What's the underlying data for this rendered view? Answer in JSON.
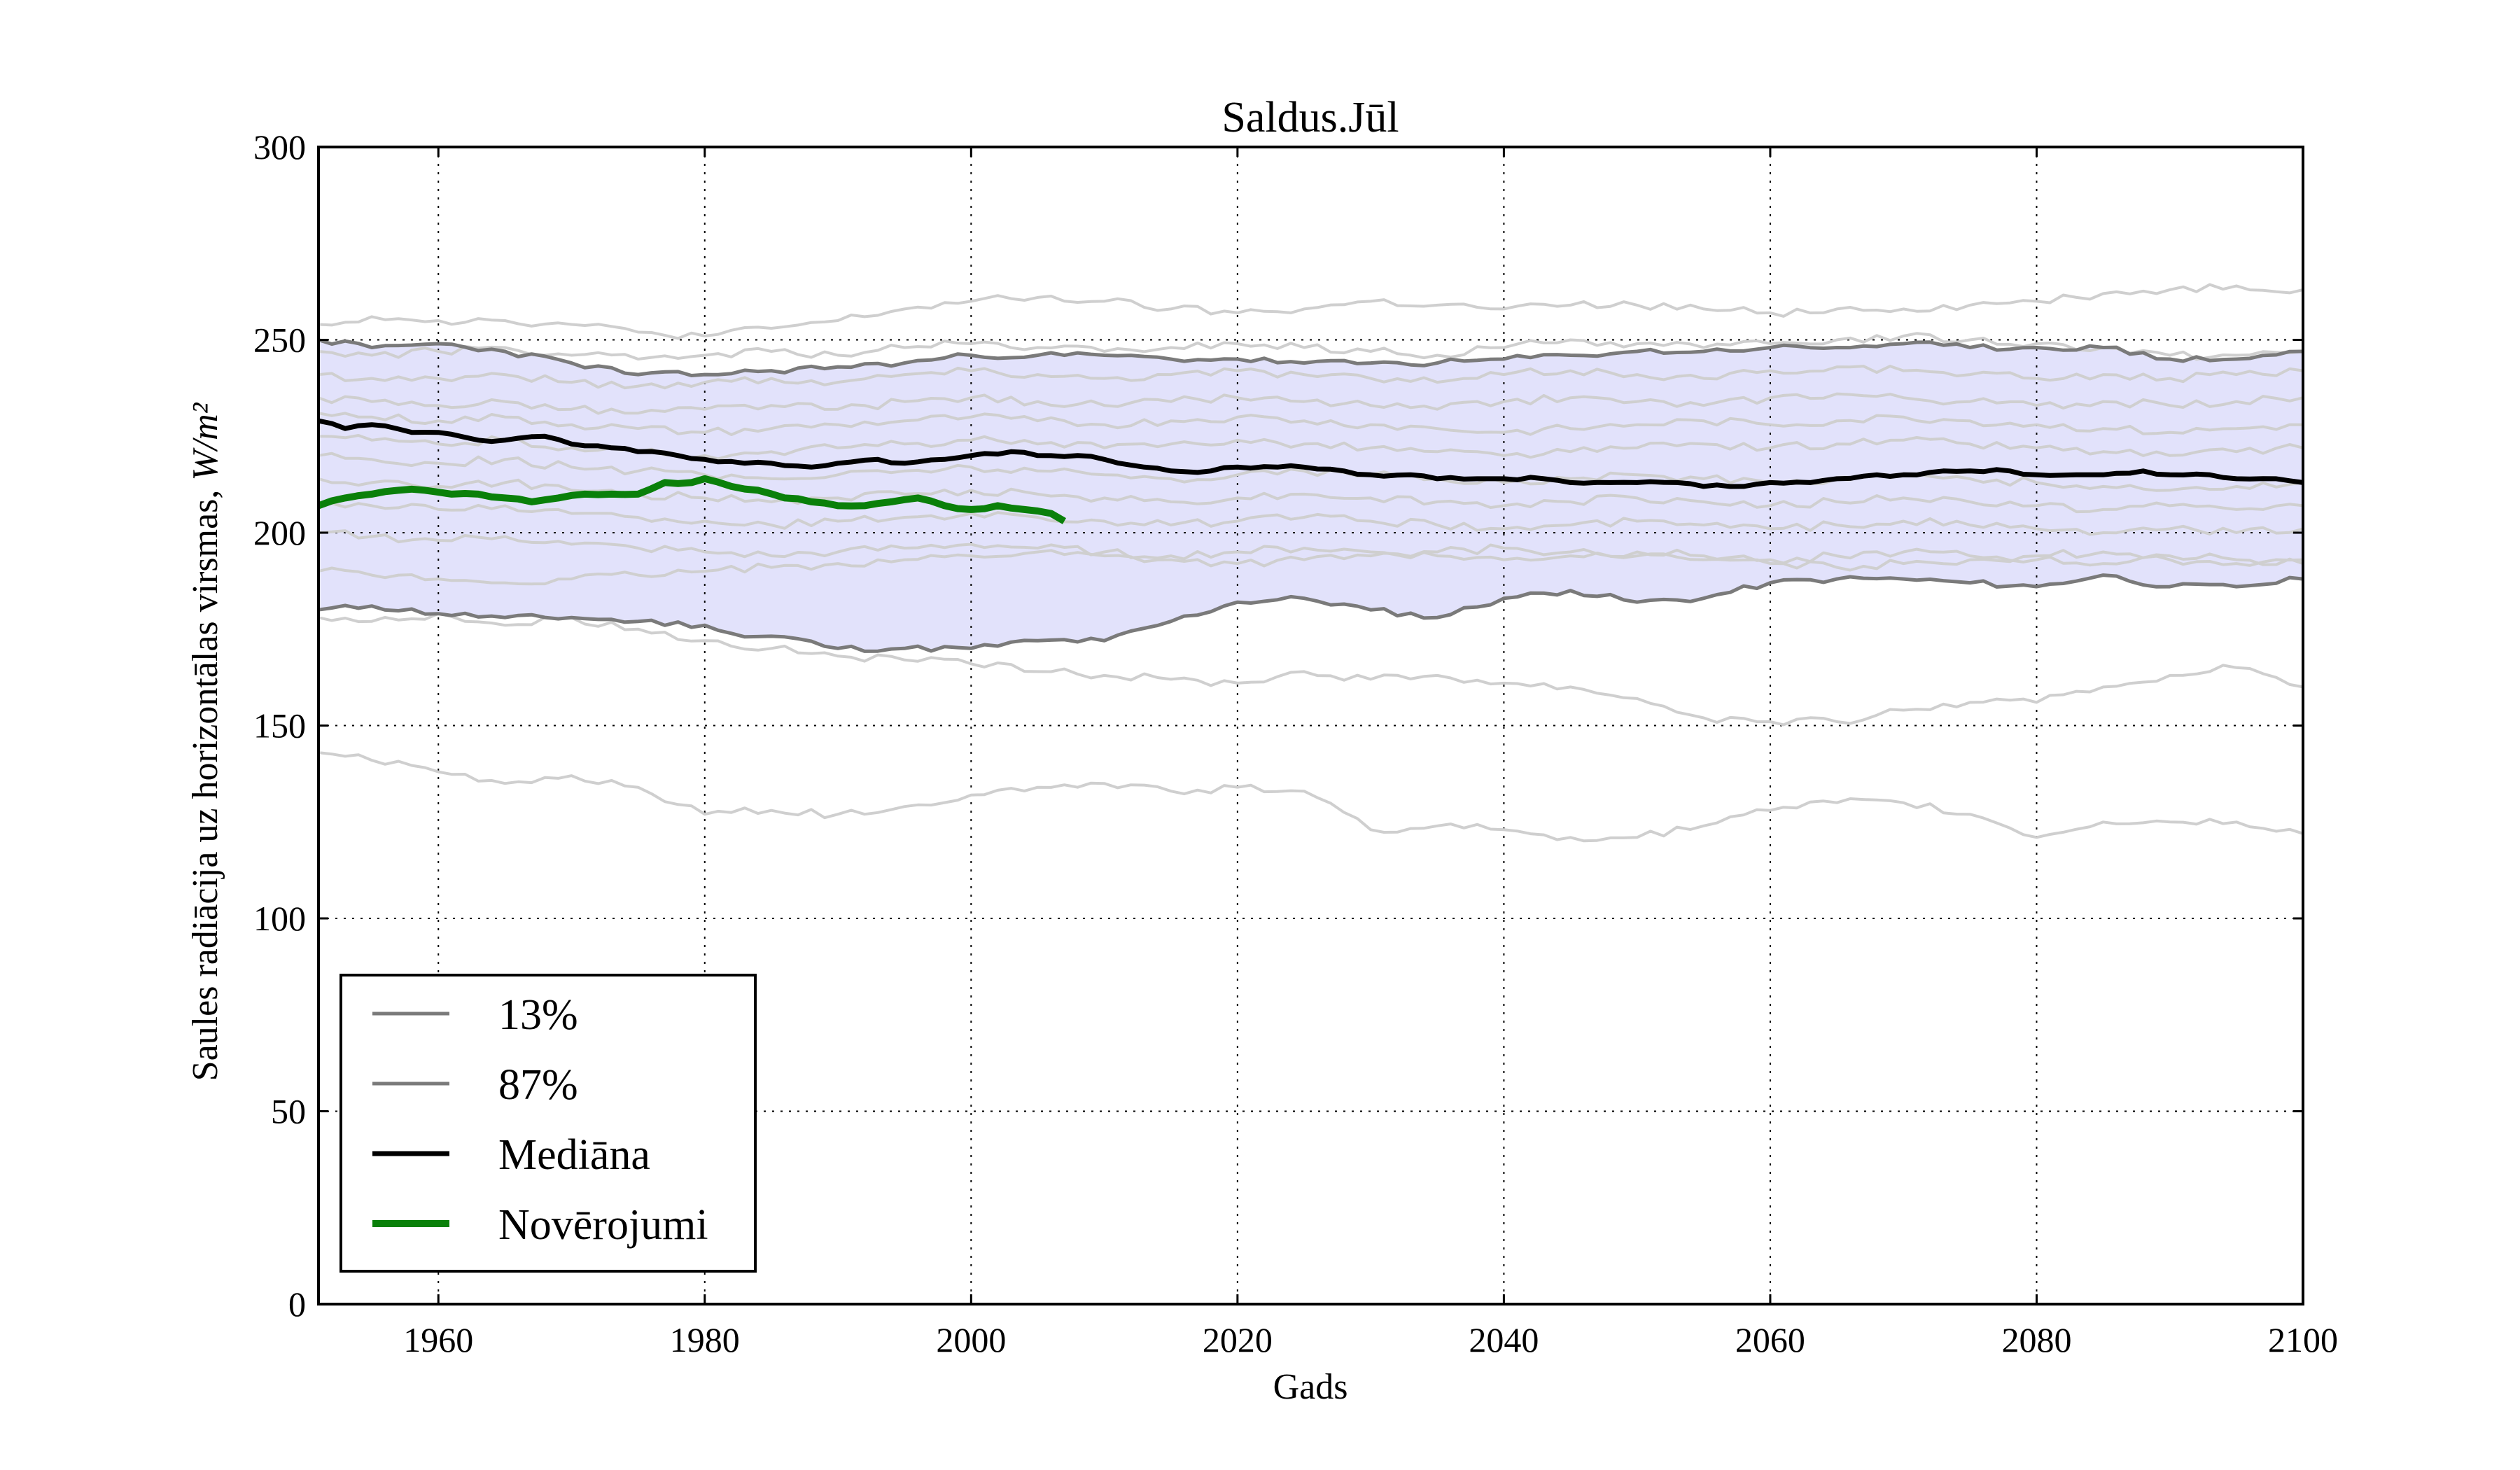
{
  "chart_data": {
    "type": "line",
    "title": "Saldus.Jūl",
    "xlabel": "Gads",
    "ylabel": "Saules radiācija uz horizontālas virsmas, W/m²",
    "xlim": [
      1951,
      2100
    ],
    "ylim": [
      0,
      300
    ],
    "xticks": [
      "1960",
      "1980",
      "2000",
      "2020",
      "2040",
      "2060",
      "2080",
      "2100"
    ],
    "yticks": [
      "0",
      "50",
      "100",
      "150",
      "200",
      "250",
      "300"
    ],
    "grid": true,
    "legend_position": "lower-left",
    "band": {
      "name": "13%–87%",
      "color": "#e2e2fb"
    },
    "series": [
      {
        "name": "13%",
        "color": "#7a7a7a",
        "x": [
          1951,
          1955,
          1960,
          1965,
          1970,
          1975,
          1980,
          1983,
          1986,
          1990,
          1995,
          2000,
          2005,
          2010,
          2015,
          2020,
          2025,
          2030,
          2035,
          2040,
          2045,
          2050,
          2055,
          2060,
          2065,
          2070,
          2075,
          2080,
          2085,
          2090,
          2095,
          2100
        ],
        "y": [
          180,
          181,
          179,
          178,
          178,
          177,
          176,
          173,
          173,
          170,
          170,
          170,
          172,
          172,
          177,
          182,
          183,
          180,
          178,
          183,
          185,
          182,
          183,
          187,
          188,
          188,
          187,
          186,
          189,
          186,
          186,
          188
        ]
      },
      {
        "name": "87%",
        "color": "#7a7a7a",
        "x": [
          1951,
          1955,
          1960,
          1965,
          1970,
          1975,
          1980,
          1985,
          1990,
          1995,
          2000,
          2005,
          2010,
          2015,
          2020,
          2025,
          2030,
          2035,
          2040,
          2045,
          2050,
          2055,
          2060,
          2065,
          2070,
          2075,
          2080,
          2085,
          2090,
          2095,
          2100
        ],
        "y": [
          250,
          248,
          249,
          247,
          244,
          241,
          241,
          242,
          243,
          244,
          246,
          246,
          246,
          245,
          245,
          244,
          244,
          244,
          245,
          246,
          247,
          247,
          248,
          248,
          249,
          248,
          248,
          248,
          245,
          245,
          247
        ]
      },
      {
        "name": "Mediāna",
        "color": "#000000",
        "x": [
          1951,
          1953,
          1955,
          1958,
          1960,
          1963,
          1965,
          1968,
          1970,
          1973,
          1975,
          1978,
          1980,
          1983,
          1985,
          1988,
          1990,
          1993,
          1995,
          1998,
          2000,
          2003,
          2005,
          2008,
          2010,
          2013,
          2015,
          2018,
          2020,
          2023,
          2025,
          2028,
          2030,
          2033,
          2035,
          2038,
          2040,
          2043,
          2045,
          2048,
          2050,
          2053,
          2055,
          2058,
          2060,
          2063,
          2065,
          2068,
          2070,
          2073,
          2075,
          2078,
          2080,
          2083,
          2085,
          2088,
          2090,
          2093,
          2095,
          2098,
          2100
        ],
        "y": [
          229,
          227,
          228,
          226,
          226,
          224,
          224,
          225,
          223,
          222,
          221,
          220,
          219,
          218,
          218,
          217,
          218,
          219,
          218,
          219,
          220,
          221,
          220,
          220,
          219,
          217,
          216,
          216,
          217,
          217,
          217,
          216,
          215,
          215,
          214,
          214,
          214,
          214,
          213,
          213,
          213,
          213,
          212,
          212,
          213,
          213,
          214,
          215,
          215,
          216,
          216,
          216,
          215,
          215,
          215,
          216,
          215,
          215,
          214,
          214,
          213
        ]
      },
      {
        "name": "Novērojumi",
        "color": "#0a800a",
        "x": [
          1951,
          1953,
          1955,
          1957,
          1959,
          1961,
          1963,
          1965,
          1967,
          1969,
          1971,
          1973,
          1975,
          1977,
          1979,
          1980,
          1982,
          1984,
          1986,
          1988,
          1990,
          1992,
          1994,
          1996,
          1998,
          2000,
          2002,
          2004,
          2006,
          2007
        ],
        "y": [
          207,
          209,
          210,
          211,
          211,
          210,
          210,
          209,
          208,
          209,
          210,
          210,
          210,
          213,
          213,
          214,
          212,
          211,
          209,
          208,
          207,
          207,
          208,
          209,
          207,
          206,
          207,
          206,
          205,
          203
        ]
      }
    ],
    "ensemble_members": [
      {
        "x": [
          1951,
          1955,
          1960,
          1965,
          1970,
          1975,
          1980,
          1985,
          1990,
          1995,
          2000,
          2005,
          2010,
          2015,
          2020,
          2025,
          2030,
          2035,
          2040,
          2045,
          2050,
          2055,
          2060,
          2065,
          2070,
          2075,
          2080,
          2085,
          2090,
          2095,
          2100
        ],
        "y": [
          254,
          256,
          255,
          255,
          254,
          252,
          251,
          253,
          255,
          258,
          260,
          261,
          260,
          258,
          257,
          258,
          260,
          259,
          258,
          259,
          259,
          258,
          257,
          258,
          258,
          259,
          260,
          262,
          263,
          264,
          263
        ]
      },
      {
        "x": [
          1951,
          1955,
          1960,
          1965,
          1970,
          1975,
          1980,
          1985,
          1990,
          1995,
          2000,
          2005,
          2010,
          2015,
          2020,
          2025,
          2030,
          2035,
          2040,
          2045,
          2050,
          2055,
          2060,
          2065,
          2070,
          2075,
          2080,
          2085,
          2090,
          2095,
          2100
        ],
        "y": [
          247,
          246,
          247,
          248,
          246,
          245,
          246,
          247,
          246,
          248,
          249,
          248,
          247,
          248,
          249,
          248,
          247,
          246,
          248,
          250,
          249,
          248,
          249,
          250,
          251,
          250,
          249,
          248,
          246,
          246,
          247
        ]
      },
      {
        "x": [
          1951,
          1955,
          1960,
          1965,
          1970,
          1975,
          1980,
          1985,
          1990,
          1995,
          2000,
          2005,
          2010,
          2015,
          2020,
          2025,
          2030,
          2035,
          2040,
          2045,
          2050,
          2055,
          2060,
          2065,
          2070,
          2075,
          2080,
          2085,
          2090,
          2095,
          2100
        ],
        "y": [
          241,
          240,
          240,
          241,
          239,
          238,
          239,
          240,
          239,
          241,
          242,
          241,
          240,
          241,
          242,
          241,
          240,
          239,
          241,
          242,
          241,
          240,
          242,
          243,
          242,
          241,
          240,
          241,
          240,
          241,
          242
        ]
      },
      {
        "x": [
          1951,
          1955,
          1960,
          1965,
          1970,
          1975,
          1980,
          1985,
          1990,
          1995,
          2000,
          2005,
          2010,
          2015,
          2020,
          2025,
          2030,
          2035,
          2040,
          2045,
          2050,
          2055,
          2060,
          2065,
          2070,
          2075,
          2080,
          2085,
          2090,
          2095,
          2100
        ],
        "y": [
          235,
          234,
          233,
          234,
          232,
          231,
          232,
          233,
          232,
          234,
          235,
          234,
          233,
          234,
          235,
          234,
          233,
          232,
          234,
          235,
          234,
          233,
          235,
          236,
          235,
          234,
          233,
          234,
          233,
          234,
          235
        ]
      },
      {
        "x": [
          1951,
          1955,
          1960,
          1965,
          1970,
          1975,
          1980,
          1985,
          1990,
          1995,
          2000,
          2005,
          2010,
          2015,
          2020,
          2025,
          2030,
          2035,
          2040,
          2045,
          2050,
          2055,
          2060,
          2065,
          2070,
          2075,
          2080,
          2085,
          2090,
          2095,
          2100
        ],
        "y": [
          231,
          230,
          229,
          230,
          228,
          227,
          226,
          227,
          228,
          229,
          230,
          229,
          228,
          229,
          230,
          229,
          228,
          227,
          226,
          227,
          228,
          229,
          228,
          229,
          230,
          229,
          228,
          227,
          226,
          227,
          228
        ]
      },
      {
        "x": [
          1951,
          1955,
          1960,
          1965,
          1970,
          1975,
          1980,
          1985,
          1990,
          1995,
          2000,
          2005,
          2010,
          2015,
          2020,
          2025,
          2030,
          2035,
          2040,
          2045,
          2050,
          2055,
          2060,
          2065,
          2070,
          2075,
          2080,
          2085,
          2090,
          2095,
          2100
        ],
        "y": [
          225,
          224,
          223,
          224,
          222,
          221,
          220,
          221,
          222,
          223,
          224,
          223,
          222,
          223,
          224,
          223,
          222,
          221,
          220,
          221,
          222,
          223,
          222,
          223,
          224,
          223,
          222,
          221,
          220,
          221,
          222
        ]
      },
      {
        "x": [
          1951,
          1955,
          1960,
          1965,
          1970,
          1975,
          1980,
          1985,
          1990,
          1995,
          2000,
          2005,
          2010,
          2015,
          2020,
          2025,
          2030,
          2035,
          2040,
          2045,
          2050,
          2055,
          2060,
          2065,
          2070,
          2075,
          2080,
          2085,
          2090,
          2095,
          2100
        ],
        "y": [
          220,
          219,
          218,
          219,
          217,
          216,
          215,
          214,
          215,
          216,
          217,
          216,
          215,
          214,
          215,
          216,
          215,
          214,
          213,
          214,
          215,
          214,
          213,
          214,
          215,
          214,
          213,
          212,
          211,
          212,
          213
        ]
      },
      {
        "x": [
          1951,
          1955,
          1960,
          1965,
          1970,
          1975,
          1980,
          1985,
          1990,
          1995,
          2000,
          2005,
          2010,
          2015,
          2020,
          2025,
          2030,
          2035,
          2040,
          2045,
          2050,
          2055,
          2060,
          2065,
          2070,
          2075,
          2080,
          2085,
          2090,
          2095,
          2100
        ],
        "y": [
          214,
          213,
          212,
          213,
          211,
          210,
          209,
          208,
          209,
          210,
          211,
          210,
          209,
          208,
          209,
          210,
          209,
          208,
          207,
          208,
          209,
          208,
          207,
          208,
          209,
          208,
          207,
          206,
          207,
          206,
          207
        ]
      },
      {
        "x": [
          1951,
          1955,
          1960,
          1965,
          1970,
          1975,
          1980,
          1985,
          1990,
          1995,
          2000,
          2005,
          2010,
          2015,
          2020,
          2025,
          2030,
          2035,
          2040,
          2045,
          2050,
          2055,
          2060,
          2065,
          2070,
          2075,
          2080,
          2085,
          2090,
          2095,
          2100
        ],
        "y": [
          208,
          207,
          206,
          207,
          205,
          204,
          203,
          202,
          203,
          204,
          205,
          204,
          203,
          202,
          203,
          204,
          203,
          202,
          201,
          202,
          203,
          202,
          201,
          202,
          203,
          202,
          201,
          200,
          201,
          200,
          201
        ]
      },
      {
        "x": [
          1951,
          1955,
          1960,
          1965,
          1970,
          1975,
          1980,
          1985,
          1990,
          1995,
          2000,
          2005,
          2010,
          2015,
          2020,
          2025,
          2030,
          2035,
          2040,
          2045,
          2050,
          2055,
          2060,
          2065,
          2070,
          2075,
          2080,
          2085,
          2090,
          2095,
          2100
        ],
        "y": [
          200,
          199,
          198,
          199,
          197,
          196,
          195,
          194,
          195,
          196,
          197,
          196,
          195,
          194,
          195,
          196,
          195,
          194,
          193,
          194,
          195,
          194,
          193,
          194,
          195,
          194,
          193,
          192,
          193,
          192,
          193
        ]
      },
      {
        "x": [
          1951,
          1955,
          1960,
          1965,
          1970,
          1975,
          1980,
          1985,
          1990,
          1995,
          2000,
          2005,
          2010,
          2015,
          2020,
          2025,
          2030,
          2035,
          2040,
          2045,
          2050,
          2055,
          2060,
          2065,
          2070,
          2075,
          2080,
          2085,
          2090,
          2095,
          2100
        ],
        "y": [
          190,
          189,
          188,
          187,
          188,
          189,
          190,
          191,
          192,
          193,
          194,
          195,
          194,
          193,
          192,
          193,
          194,
          195,
          196,
          195,
          194,
          193,
          192,
          191,
          192,
          193,
          194,
          195,
          194,
          193,
          192
        ]
      },
      {
        "x": [
          1951,
          1955,
          1960,
          1965,
          1970,
          1975,
          1980,
          1985,
          1990,
          1995,
          2000,
          2005,
          2010,
          2015,
          2020,
          2025,
          2030,
          2035,
          2040,
          2045,
          2050,
          2055,
          2060,
          2065,
          2070,
          2075,
          2080,
          2085,
          2090,
          2095,
          2100
        ],
        "y": [
          178,
          177,
          179,
          176,
          178,
          175,
          172,
          170,
          168,
          167,
          166,
          164,
          163,
          162,
          161,
          164,
          162,
          163,
          161,
          160,
          157,
          152,
          151,
          151,
          154,
          156,
          156,
          160,
          163,
          165,
          160
        ]
      },
      {
        "x": [
          1951,
          1955,
          1960,
          1965,
          1970,
          1975,
          1980,
          1985,
          1990,
          1995,
          2000,
          2005,
          2010,
          2015,
          2020,
          2025,
          2030,
          2035,
          2040,
          2045,
          2050,
          2055,
          2060,
          2065,
          2070,
          2075,
          2080,
          2085,
          2090,
          2095,
          2100
        ],
        "y": [
          143,
          141,
          138,
          135,
          137,
          134,
          127,
          128,
          127,
          129,
          132,
          134,
          135,
          133,
          134,
          133,
          123,
          124,
          123,
          121,
          121,
          124,
          128,
          130,
          130,
          127,
          121,
          125,
          125,
          125,
          122
        ]
      }
    ]
  }
}
